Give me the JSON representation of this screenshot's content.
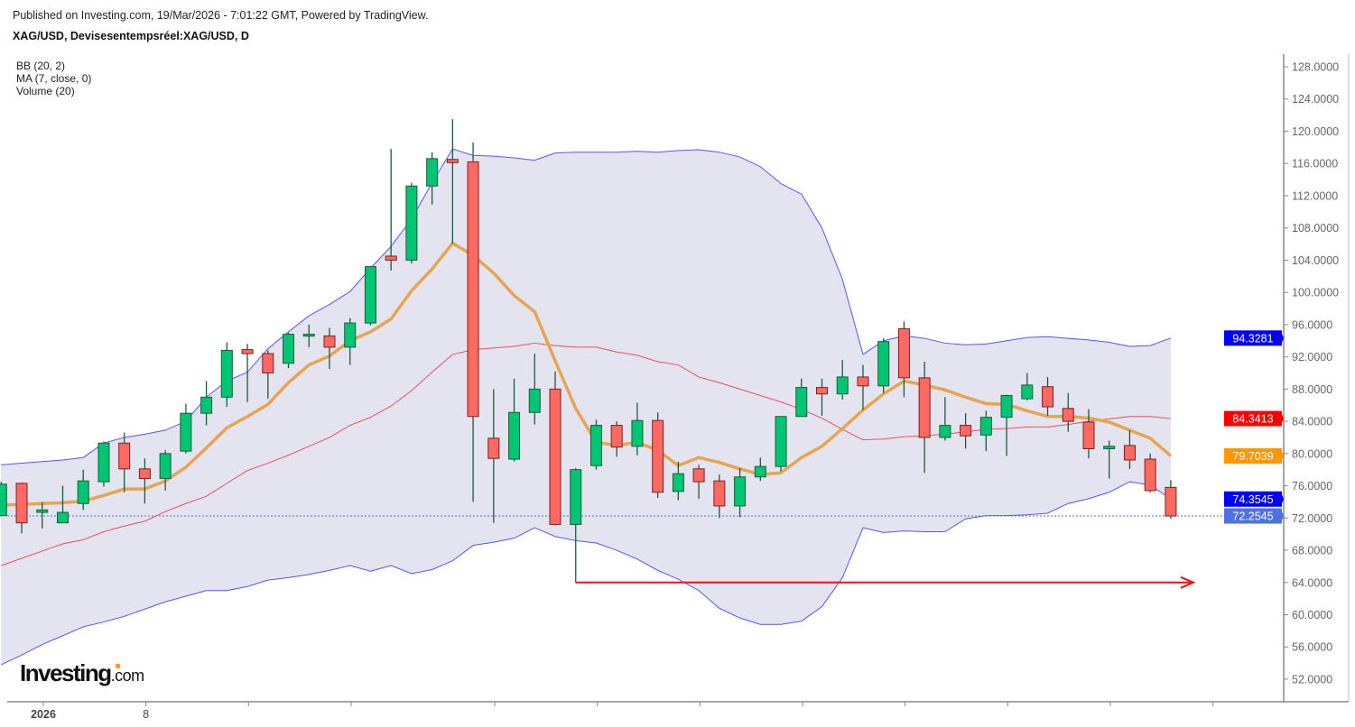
{
  "header": {
    "published": "Published on Investing.com, 19/Mar/2026 - 7:01:22 GMT, Powered by TradingView.",
    "title": "XAG/USD, Devisesentempsréel:XAG/USD, D"
  },
  "legend": [
    "BB (20, 2)",
    "MA (7, close, 0)",
    "Volume (20)"
  ],
  "logo": {
    "main": "Investing",
    "suffix": ".com"
  },
  "colors": {
    "up": "#00c572",
    "down": "#ff6961",
    "bb_fill": "#e4e4f0",
    "bb_band": "#5555ff",
    "bb_mid": "#e8505e",
    "ma": "#e8a550",
    "arrow": "#ee1111"
  },
  "chart_data": {
    "type": "candlestick",
    "symbol": "XAG/USD",
    "interval": "D",
    "ylim": [
      50,
      130
    ],
    "yticks": [
      "128.0000",
      "124.0000",
      "120.0000",
      "116.0000",
      "112.0000",
      "108.0000",
      "104.0000",
      "100.0000",
      "96.0000",
      "92.0000",
      "88.0000",
      "84.0000",
      "80.0000",
      "76.0000",
      "72.0000",
      "68.0000",
      "64.0000",
      "60.0000",
      "56.0000",
      "52.0000"
    ],
    "ytick_values": [
      128,
      124,
      120,
      116,
      112,
      108,
      104,
      100,
      96,
      92,
      88,
      84,
      80,
      76,
      72,
      68,
      64,
      60,
      56,
      52
    ],
    "xtick_labels": [
      {
        "index": 2,
        "label": "2026"
      },
      {
        "index": 7,
        "label": "8"
      }
    ],
    "xtick_indices": [
      2,
      7,
      12,
      17,
      24,
      29,
      34,
      39,
      44,
      49,
      54,
      59
    ],
    "ohlc": [
      [
        72.3,
        76.5,
        72.2,
        76.2
      ],
      [
        76.3,
        76.4,
        70.1,
        71.4
      ],
      [
        72.7,
        74.0,
        70.7,
        73.0
      ],
      [
        71.4,
        76.0,
        71.4,
        72.7
      ],
      [
        73.8,
        78.0,
        73.0,
        76.6
      ],
      [
        76.5,
        81.5,
        75.9,
        81.3
      ],
      [
        81.3,
        82.6,
        75.2,
        78.1
      ],
      [
        78.1,
        79.4,
        73.8,
        76.9
      ],
      [
        76.9,
        80.4,
        75.4,
        80.0
      ],
      [
        80.3,
        86.2,
        80.0,
        85.0
      ],
      [
        85.0,
        89.0,
        83.5,
        87.0
      ],
      [
        87.0,
        93.8,
        85.8,
        92.8
      ],
      [
        92.9,
        93.6,
        86.4,
        92.4
      ],
      [
        92.4,
        92.8,
        86.8,
        90.0
      ],
      [
        91.2,
        95.0,
        90.6,
        94.8
      ],
      [
        94.7,
        96.0,
        93.2,
        94.8
      ],
      [
        94.6,
        95.6,
        90.5,
        93.2
      ],
      [
        93.2,
        96.8,
        91.0,
        96.2
      ],
      [
        96.2,
        103.2,
        95.9,
        103.2
      ],
      [
        104.5,
        117.8,
        102.7,
        104.0
      ],
      [
        104.0,
        113.6,
        103.6,
        113.2
      ],
      [
        113.2,
        117.4,
        110.9,
        116.6
      ],
      [
        116.5,
        121.5,
        106.0,
        116.1
      ],
      [
        116.2,
        118.6,
        74.0,
        84.6
      ],
      [
        81.9,
        88.0,
        71.4,
        79.4
      ],
      [
        79.3,
        89.3,
        79.0,
        85.1
      ],
      [
        85.1,
        92.4,
        83.6,
        88.0
      ],
      [
        88.0,
        90.2,
        71.1,
        71.2
      ],
      [
        71.2,
        78.2,
        64.0,
        78.0
      ],
      [
        78.5,
        84.2,
        78.0,
        83.5
      ],
      [
        83.5,
        84.0,
        79.6,
        80.8
      ],
      [
        80.9,
        86.3,
        79.8,
        84.1
      ],
      [
        84.1,
        85.1,
        74.5,
        75.2
      ],
      [
        75.3,
        79.0,
        74.2,
        77.5
      ],
      [
        78.1,
        78.6,
        74.4,
        76.5
      ],
      [
        76.6,
        77.4,
        72.0,
        73.5
      ],
      [
        73.5,
        78.2,
        72.1,
        77.1
      ],
      [
        77.1,
        79.5,
        76.6,
        78.4
      ],
      [
        78.4,
        84.6,
        77.8,
        84.6
      ],
      [
        84.6,
        89.3,
        84.6,
        88.2
      ],
      [
        88.2,
        89.3,
        84.7,
        87.4
      ],
      [
        87.4,
        91.6,
        86.7,
        89.5
      ],
      [
        89.5,
        91.0,
        85.4,
        88.4
      ],
      [
        88.4,
        94.3,
        87.5,
        93.9
      ],
      [
        95.5,
        96.4,
        87.0,
        89.4
      ],
      [
        89.4,
        91.4,
        77.6,
        82.0
      ],
      [
        82.0,
        87.0,
        81.6,
        83.5
      ],
      [
        83.5,
        85.0,
        80.6,
        82.2
      ],
      [
        82.3,
        85.3,
        80.3,
        84.5
      ],
      [
        84.5,
        87.3,
        79.7,
        87.2
      ],
      [
        86.8,
        90.0,
        86.6,
        88.5
      ],
      [
        88.3,
        89.5,
        84.7,
        85.8
      ],
      [
        85.6,
        87.5,
        82.7,
        84.0
      ],
      [
        83.9,
        85.5,
        79.4,
        80.6
      ],
      [
        80.6,
        81.6,
        76.9,
        80.9
      ],
      [
        81.0,
        82.9,
        78.1,
        79.2
      ],
      [
        79.3,
        80.0,
        75.2,
        75.4
      ],
      [
        75.8,
        76.7,
        71.9,
        72.25
      ]
    ],
    "bb_upper": [
      78.6,
      78.8,
      79.0,
      79.2,
      79.5,
      81.3,
      82.0,
      82.4,
      82.9,
      84.0,
      87.0,
      89.0,
      90.1,
      93.0,
      95.1,
      97.1,
      98.5,
      100.1,
      103.0,
      105.7,
      109.1,
      113.6,
      117.8,
      117.0,
      116.9,
      116.7,
      116.4,
      117.3,
      117.4,
      117.4,
      117.4,
      117.5,
      117.4,
      117.6,
      117.7,
      117.4,
      116.8,
      115.6,
      113.5,
      112.2,
      108.0,
      101.6,
      92.3,
      94.0,
      94.6,
      94.3,
      93.7,
      93.5,
      93.6,
      94.0,
      94.4,
      94.5,
      94.3,
      94.1,
      93.8,
      93.3,
      93.4,
      94.3281
    ],
    "bb_middle": [
      66.1,
      67.0,
      67.9,
      68.8,
      69.3,
      70.3,
      71.0,
      71.6,
      72.8,
      73.8,
      74.7,
      76.3,
      77.9,
      78.8,
      79.8,
      80.9,
      82.0,
      83.5,
      84.5,
      85.9,
      87.8,
      90.1,
      92.3,
      92.9,
      93.1,
      93.3,
      93.7,
      93.4,
      93.2,
      93.2,
      92.6,
      92.2,
      91.4,
      91.0,
      89.5,
      88.8,
      88.0,
      87.2,
      86.4,
      85.5,
      84.4,
      83.0,
      81.7,
      81.8,
      82.1,
      82.2,
      82.4,
      82.7,
      83.0,
      83.1,
      83.3,
      83.3,
      83.6,
      84.0,
      84.3,
      84.6,
      84.6,
      84.3413
    ],
    "bb_lower": [
      53.8,
      55.0,
      56.3,
      57.4,
      58.5,
      59.1,
      59.8,
      60.7,
      61.6,
      62.3,
      63.0,
      63.0,
      63.5,
      64.3,
      64.6,
      65.0,
      65.5,
      66.1,
      65.4,
      66.1,
      65.1,
      65.6,
      66.7,
      68.6,
      69.0,
      69.5,
      70.8,
      69.7,
      69.2,
      68.9,
      68.0,
      66.9,
      65.5,
      64.4,
      63.0,
      60.8,
      59.6,
      58.8,
      58.8,
      59.2,
      61.0,
      64.6,
      70.8,
      70.2,
      70.4,
      70.3,
      70.3,
      71.9,
      72.3,
      72.3,
      72.4,
      72.6,
      73.8,
      74.4,
      75.2,
      76.5,
      76.1,
      74.3545
    ],
    "ma7": [
      73.6,
      73.7,
      73.8,
      73.9,
      74.1,
      74.8,
      75.6,
      75.6,
      76.6,
      78.3,
      80.7,
      83.2,
      84.6,
      86.1,
      88.8,
      91.0,
      92.1,
      94.0,
      95.1,
      96.7,
      100.2,
      102.9,
      106.1,
      104.6,
      102.4,
      99.6,
      97.6,
      91.5,
      85.6,
      81.4,
      81.0,
      81.4,
      80.4,
      78.5,
      79.5,
      78.9,
      78.1,
      77.4,
      77.6,
      79.5,
      80.9,
      83.1,
      85.4,
      87.4,
      89.0,
      88.5,
      87.9,
      87.0,
      86.2,
      86.1,
      85.3,
      84.6,
      84.6,
      84.4,
      83.9,
      82.9,
      81.9,
      79.7039
    ],
    "price_labels": [
      {
        "value": 94.3281,
        "text": "94.3281",
        "color": "#0000ff",
        "series": "bb_upper"
      },
      {
        "value": 84.3413,
        "text": "84.3413",
        "color": "#ff0000",
        "series": "bb_middle"
      },
      {
        "value": 79.7039,
        "text": "79.7039",
        "color": "#ff9800",
        "series": "ma7"
      },
      {
        "value": 74.3545,
        "text": "74.3545",
        "color": "#0000ff",
        "series": "bb_lower"
      },
      {
        "value": 72.2545,
        "text": "72.2545",
        "color": "#4f72e3",
        "series": "last_price"
      }
    ],
    "last_price": 72.2545,
    "annotation_arrow": {
      "price": 64.0,
      "from_index": 28,
      "to_index": 58.1
    }
  }
}
